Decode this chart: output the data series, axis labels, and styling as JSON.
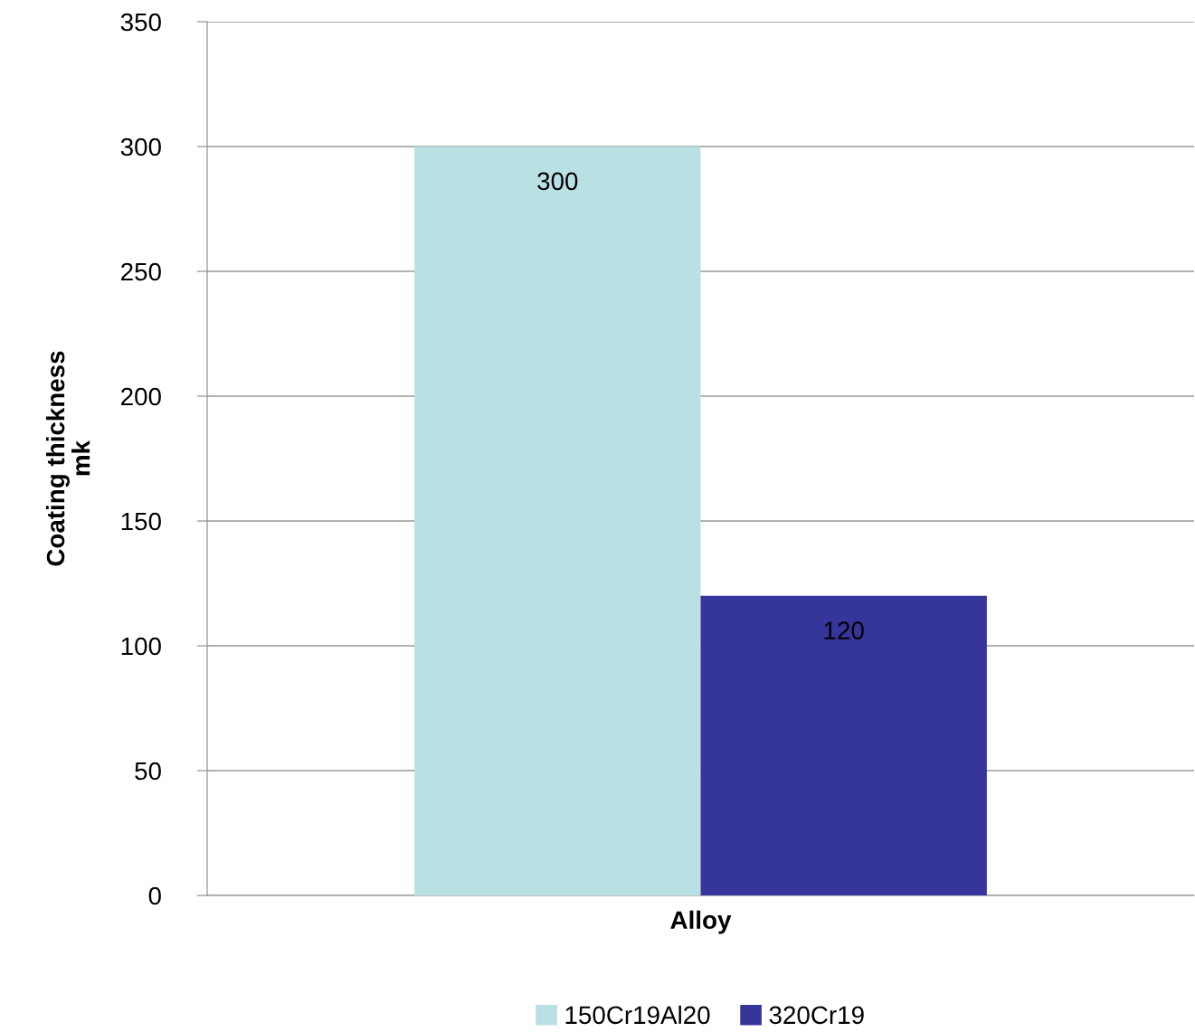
{
  "chart_data": {
    "type": "bar",
    "ylabel": "Coating thickness\nmk",
    "categories": [
      "Alloy"
    ],
    "series": [
      {
        "name": "150Cr19Al20",
        "color": "#b9e0e3",
        "values": [
          300
        ]
      },
      {
        "name": "320Cr19",
        "color": "#35359a",
        "values": [
          120
        ]
      }
    ],
    "ylim": [
      0,
      350
    ],
    "yticks": [
      0,
      50,
      100,
      150,
      200,
      250,
      300,
      350
    ],
    "grid": "y",
    "legend": "bottom",
    "data_labels": true
  }
}
